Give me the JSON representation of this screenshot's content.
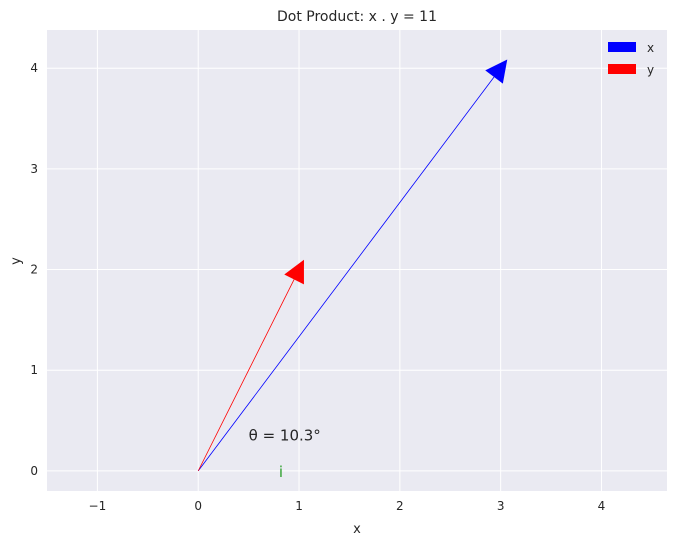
{
  "chart_data": {
    "type": "quiver",
    "title": "Dot Product: x . y = 11",
    "xlabel": "x",
    "ylabel": "y",
    "xlim": [
      -1.5,
      4.65
    ],
    "ylim": [
      -0.2,
      4.38
    ],
    "xticks": [
      -1,
      0,
      1,
      2,
      3,
      4
    ],
    "xtick_labels": [
      "−1",
      "0",
      "1",
      "2",
      "3",
      "4"
    ],
    "yticks": [
      0,
      1,
      2,
      3,
      4
    ],
    "ytick_labels": [
      "0",
      "1",
      "2",
      "3",
      "4"
    ],
    "grid": true,
    "legend_position": "top-right",
    "series": [
      {
        "name": "x",
        "color": "#0000ff",
        "origin": [
          0,
          0
        ],
        "vector": [
          3,
          4
        ]
      },
      {
        "name": "y",
        "color": "#ff0000",
        "origin": [
          0,
          0
        ],
        "vector": [
          1,
          2
        ]
      }
    ],
    "annotations": [
      {
        "text": "θ = 10.3°",
        "x": 0.5,
        "y": 0.3,
        "color": "#262626"
      },
      {
        "text": "i",
        "x": 0.8,
        "y": 0.0,
        "color": "#2ca02c"
      }
    ]
  }
}
